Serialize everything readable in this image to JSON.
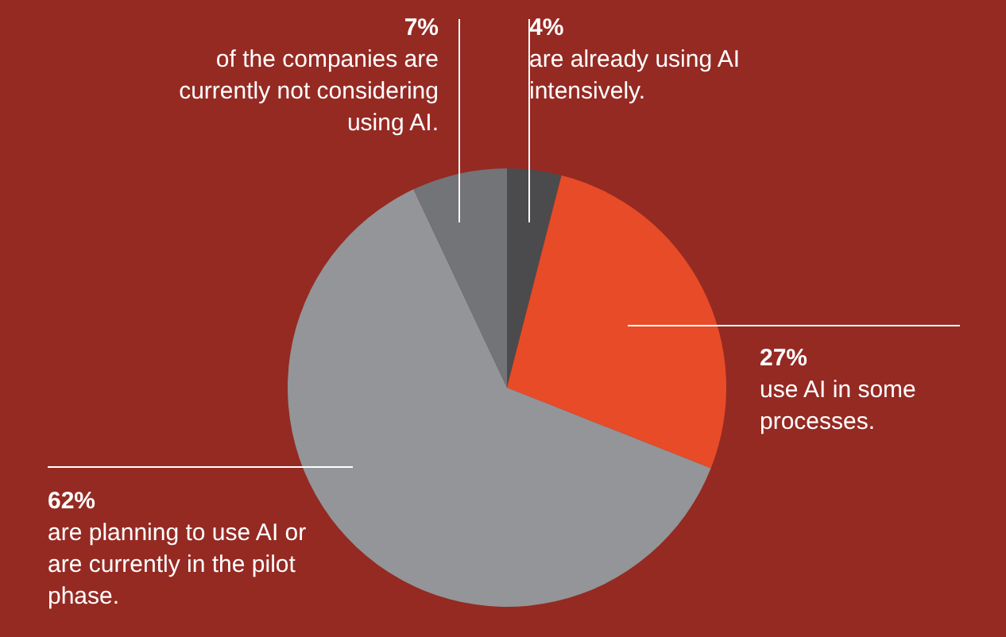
{
  "chart_data": {
    "type": "pie",
    "categories": [
      "are already using AI intensively.",
      "use AI in some processes.",
      "are planning to use AI or are currently in the pilot phase.",
      "of the companies are currently not considering using AI."
    ],
    "values": [
      4,
      27,
      62,
      7
    ],
    "colors": [
      "#4b4b4d",
      "#e84b27",
      "#939598",
      "#737477"
    ],
    "value_labels": [
      "4%",
      "27%",
      "62%",
      "7%"
    ],
    "legend": false
  }
}
